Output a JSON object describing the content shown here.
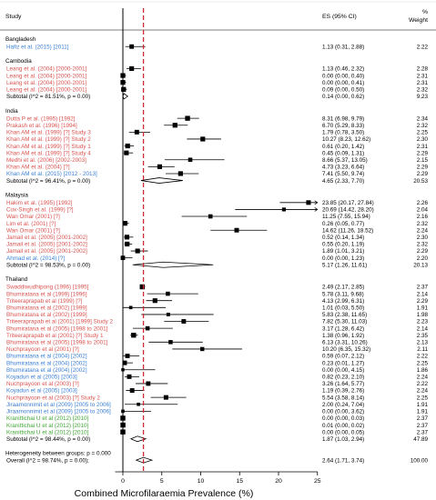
{
  "chart_data": {
    "type": "forest",
    "title": "",
    "xlabel": "Combined Microfilaraemia Prevalence (%)",
    "ylabel": "",
    "xlim": [
      -1,
      25
    ],
    "xticks": [
      0,
      5,
      10,
      15,
      20,
      25
    ],
    "reference_line_x": 2.64,
    "headers": {
      "study": "Study",
      "es": "ES (95% CI)",
      "weight": "%\nWeight"
    },
    "author_colors": {
      "red": "#d9534f",
      "blue": "#3a7fd5",
      "green": "#3fa535",
      "black": "#000000"
    },
    "groups": [
      {
        "name": "Bangladesh",
        "studies": [
          {
            "label": "Hafiz et al. (2015) [2011]",
            "color": "blue",
            "es": 1.13,
            "lo": 0.31,
            "hi": 2.88,
            "es_text": "1.13 (0.31, 2.88)",
            "weight": "2.22"
          }
        ],
        "subtotal": null
      },
      {
        "name": "Cambodia",
        "studies": [
          {
            "label": "Leang et al. (2004) [2000-2001]",
            "color": "red",
            "es": 1.13,
            "lo": 0.46,
            "hi": 2.32,
            "es_text": "1.13 (0.46, 2.32)",
            "weight": "2.28"
          },
          {
            "label": "Leang et al. (2004) [2000-2001]",
            "color": "red",
            "es": 0.0,
            "lo": 0.0,
            "hi": 0.4,
            "es_text": "0.00 (0.00, 0.40)",
            "weight": "2.31"
          },
          {
            "label": "Leang et al. (2004) [2000-2001]",
            "color": "red",
            "es": 0.0,
            "lo": 0.0,
            "hi": 0.41,
            "es_text": "0.00 (0.00, 0.41)",
            "weight": "2.31"
          },
          {
            "label": "Leang et al. (2004) [2000-2001]",
            "color": "red",
            "es": 0.09,
            "lo": 0.0,
            "hi": 0.5,
            "es_text": "0.09 (0.00, 0.50)",
            "weight": "2.32"
          }
        ],
        "subtotal": {
          "label": "Subtotal  (I^2 = 81.51%, p = 0.00)",
          "es": 0.14,
          "lo": 0.0,
          "hi": 0.62,
          "es_text": "0.14 (0.00, 0.62)",
          "weight": "9.23"
        }
      },
      {
        "name": "India",
        "studies": [
          {
            "label": "Dutta P et al. (1995) [1992]",
            "color": "red",
            "es": 8.31,
            "lo": 6.98,
            "hi": 9.79,
            "es_text": "8.31 (6.98, 9.79)",
            "weight": "2.34"
          },
          {
            "label": "Prakash et al. (1996) [1994]",
            "color": "red",
            "es": 6.7,
            "lo": 5.29,
            "hi": 8.33,
            "es_text": "6.70 (5.29, 8.33)",
            "weight": "2.32"
          },
          {
            "label": "Khan AM et al. (1999) [?] Study 3",
            "color": "red",
            "es": 1.79,
            "lo": 0.78,
            "hi": 3.5,
            "es_text": "1.79 (0.78, 3.50)",
            "weight": "2.25"
          },
          {
            "label": "Khan AM et al. (1999) [?] Study 2",
            "color": "red",
            "es": 10.27,
            "lo": 8.23,
            "hi": 12.62,
            "es_text": "10.27 (8.23, 12.62)",
            "weight": "2.30"
          },
          {
            "label": "Khan AM et al. (1999) [?] Study 1",
            "color": "red",
            "es": 0.61,
            "lo": 0.2,
            "hi": 1.42,
            "es_text": "0.61 (0.20, 1.42)",
            "weight": "2.31"
          },
          {
            "label": "Khan AM et al. (1999) [?] Study 4",
            "color": "red",
            "es": 0.45,
            "lo": 0.09,
            "hi": 1.31,
            "es_text": "0.45 (0.09, 1.31)",
            "weight": "2.29"
          },
          {
            "label": "Medhi et al. (2006) [2002-2003]",
            "color": "red",
            "es": 8.66,
            "lo": 5.37,
            "hi": 13.05,
            "es_text": "8.66 (5.37, 13.05)",
            "weight": "2.15"
          },
          {
            "label": "Khan AM et al. (2004) [?]",
            "color": "red",
            "es": 4.73,
            "lo": 3.23,
            "hi": 6.64,
            "es_text": "4.73 (3.23, 6.64)",
            "weight": "2.29"
          },
          {
            "label": "Khan AM et al. (2015) [2012 - 2013]",
            "color": "blue",
            "es": 7.41,
            "lo": 5.5,
            "hi": 9.74,
            "es_text": "7.41 (5.50, 9.74)",
            "weight": "2.29"
          }
        ],
        "subtotal": {
          "label": "Subtotal  (I^2 = 96.41%, p = 0.00)",
          "es": 4.65,
          "lo": 2.33,
          "hi": 7.7,
          "es_text": "4.65 (2.33, 7.70)",
          "weight": "20.53"
        }
      },
      {
        "name": "Malaysia",
        "studies": [
          {
            "label": "Hakim et al. (1995) [1992]",
            "color": "red",
            "es": 23.85,
            "lo": 20.17,
            "hi": 27.84,
            "es_text": "23.85 (20.17, 27.84)",
            "weight": "2.26"
          },
          {
            "label": "Cox-Singh et al. (1999) [?]",
            "color": "red",
            "es": 20.69,
            "lo": 14.42,
            "hi": 28.2,
            "es_text": "20.69 (14.42, 28.20)",
            "weight": "2.04"
          },
          {
            "label": "Wan Omar (2001) [?]",
            "color": "red",
            "es": 11.25,
            "lo": 7.55,
            "hi": 15.94,
            "es_text": "11.25 (7.55, 15.94)",
            "weight": "2.16"
          },
          {
            "label": "Lim et al. (2001) [?]",
            "color": "red",
            "es": 0.26,
            "lo": 0.05,
            "hi": 0.77,
            "es_text": "0.26 (0.05, 0.77)",
            "weight": "2.32"
          },
          {
            "label": "Wan Omar (2001) [?]",
            "color": "red",
            "es": 14.62,
            "lo": 11.26,
            "hi": 18.52,
            "es_text": "14.62 (11.26, 18.52)",
            "weight": "2.24"
          },
          {
            "label": "Jamail et al. (2005) [2001-2002]",
            "color": "red",
            "es": 0.52,
            "lo": 0.14,
            "hi": 1.34,
            "es_text": "0.52 (0.14, 1.34)",
            "weight": "2.30"
          },
          {
            "label": "Jamail et al. (2005) [2001-2002]",
            "color": "red",
            "es": 0.55,
            "lo": 0.2,
            "hi": 1.19,
            "es_text": "0.55 (0.20, 1.19)",
            "weight": "2.32"
          },
          {
            "label": "Jamail et al. (2005) [2001-2002]",
            "color": "red",
            "es": 1.89,
            "lo": 1.01,
            "hi": 3.21,
            "es_text": "1.89 (1.01, 3.21)",
            "weight": "2.29"
          },
          {
            "label": "Ahmad et al. (2014) [?]",
            "color": "blue",
            "es": 0.0,
            "lo": 0.0,
            "hi": 1.23,
            "es_text": "0.00 (0.00, 1.23)",
            "weight": "2.20"
          }
        ],
        "subtotal": {
          "label": "Subtotal  (I^2 = 98.53%, p = 0.00)",
          "es": 5.17,
          "lo": 1.26,
          "hi": 11.61,
          "es_text": "5.17 (1.26, 11.61)",
          "weight": "20.13"
        }
      },
      {
        "name": "Thailand",
        "studies": [
          {
            "label": "Swaddiwudhipong (1996) [1995]",
            "color": "red",
            "es": 2.49,
            "lo": 2.17,
            "hi": 2.85,
            "es_text": "2.49 (2.17, 2.85)",
            "weight": "2.37"
          },
          {
            "label": "Bhumiratana et al (1999) [1996]",
            "color": "red",
            "es": 5.78,
            "lo": 3.11,
            "hi": 9.68,
            "es_text": "5.78 (3.11, 9.68)",
            "weight": "2.14"
          },
          {
            "label": "Triteeraprapab et al (1999) [?]",
            "color": "red",
            "es": 4.13,
            "lo": 2.99,
            "hi": 6.31,
            "es_text": "4.13 (2.99, 6.31)",
            "weight": "2.29"
          },
          {
            "label": "Bhumiratana et al (2002) [1999]",
            "color": "red",
            "es": 1.01,
            "lo": 0.03,
            "hi": 5.5,
            "es_text": "1.01 (0.03, 5.50)",
            "weight": "1.91"
          },
          {
            "label": "Bhumiratana et al (2002) [1999]",
            "color": "red",
            "es": 5.83,
            "lo": 2.38,
            "hi": 11.65,
            "es_text": "5.83 (2.38, 11.65)",
            "weight": "1.98"
          },
          {
            "label": "Triteeraprapab et al (2001) [1999] Study 2",
            "color": "red",
            "es": 7.82,
            "lo": 5.3,
            "hi": 11.03,
            "es_text": "7.82 (5.30, 11.03)",
            "weight": "2.23"
          },
          {
            "label": "Bhumiratana et al (2005) [1998 to 2001]",
            "color": "red",
            "es": 3.17,
            "lo": 1.28,
            "hi": 6.42,
            "es_text": "3.17 (1.28, 6.42)",
            "weight": "2.14"
          },
          {
            "label": "Triteeraprapab et al (2001) [?] Study 1",
            "color": "red",
            "es": 1.38,
            "lo": 0.96,
            "hi": 1.92,
            "es_text": "1.38 (0.96, 1.92)",
            "weight": "2.35"
          },
          {
            "label": "Bhumiratana et al (2005) [1998 to 2001]",
            "color": "red",
            "es": 6.13,
            "lo": 3.31,
            "hi": 10.26,
            "es_text": "6.13 (3.31, 10.26)",
            "weight": "2.13"
          },
          {
            "label": "Nuchprayoon et al (2001) [?]",
            "color": "red",
            "es": 10.2,
            "lo": 6.35,
            "hi": 15.32,
            "es_text": "10.20 (6.35, 15.32)",
            "weight": "2.11"
          },
          {
            "label": "Bhumiratana et al (2004) [2002]",
            "color": "blue",
            "es": 0.59,
            "lo": 0.07,
            "hi": 2.12,
            "es_text": "0.59 (0.07, 2.12)",
            "weight": "2.22"
          },
          {
            "label": "Bhumiratana et al (2004) [2002]",
            "color": "blue",
            "es": 0.23,
            "lo": 0.01,
            "hi": 1.27,
            "es_text": "0.23 (0.01, 1.27)",
            "weight": "2.25"
          },
          {
            "label": "Bhumiratana et al (2004) [2002]",
            "color": "blue",
            "es": 0.0,
            "lo": 0.0,
            "hi": 4.15,
            "es_text": "0.00 (0.00, 4.15)",
            "weight": "1.86"
          },
          {
            "label": "Koyadun et al (2005) [2003]",
            "color": "blue",
            "es": 0.82,
            "lo": 0.23,
            "hi": 2.1,
            "es_text": "0.82 (0.23, 2.10)",
            "weight": "2.24"
          },
          {
            "label": "Nuchprayoon et al (2003) [?]",
            "color": "red",
            "es": 3.26,
            "lo": 1.64,
            "hi": 5.77,
            "es_text": "3.26 (1.64, 5.77)",
            "weight": "2.22"
          },
          {
            "label": "Koyadun et al (2005) [2003]",
            "color": "blue",
            "es": 1.19,
            "lo": 0.39,
            "hi": 2.76,
            "es_text": "1.19 (0.39, 2.76)",
            "weight": "2.24"
          },
          {
            "label": "Nuchprayoon et al (2003) [?] Study 2",
            "color": "red",
            "es": 5.54,
            "lo": 3.58,
            "hi": 8.14,
            "es_text": "5.54 (3.58, 8.14)",
            "weight": "2.25"
          },
          {
            "label": "Jiraamonnimit et al (2009) [2005 to 2006]",
            "color": "blue",
            "es": 2.0,
            "lo": 0.24,
            "hi": 7.04,
            "es_text": "2.00 (0.24, 7.04)",
            "weight": "1.91"
          },
          {
            "label": "Jiraamonnimit et al (2009) [2005 to 2006]",
            "color": "blue",
            "es": 0.0,
            "lo": 0.0,
            "hi": 3.62,
            "es_text": "0.00 (0.00, 3.62)",
            "weight": "1.91"
          },
          {
            "label": "Kranittichai U et al (2012) [2010]",
            "color": "green",
            "es": 0.0,
            "lo": 0.0,
            "hi": 0.03,
            "es_text": "0.00 (0.00, 0.03)",
            "weight": "2.37"
          },
          {
            "label": "Kranittichai U et al (2012) [2010]",
            "color": "green",
            "es": 0.01,
            "lo": 0.0,
            "hi": 0.02,
            "es_text": "0.01 (0.00, 0.02)",
            "weight": "2.37"
          },
          {
            "label": "Kranittichai U et al (2012) [2010]",
            "color": "green",
            "es": 0.0,
            "lo": 0.0,
            "hi": 0.05,
            "es_text": "0.00 (0.00, 0.05)",
            "weight": "2.37"
          }
        ],
        "subtotal": {
          "label": "Subtotal  (I^2 = 98.44%, p = 0.00)",
          "es": 1.87,
          "lo": 1.03,
          "hi": 2.94,
          "es_text": "1.87 (1.03, 2.94)",
          "weight": "47.89"
        }
      }
    ],
    "heterogeneity": "Heterogeneity between groups: p = 0.000",
    "overall": {
      "label": "Overall  (I^2 = 98.74%, p = 0.00);",
      "es": 2.64,
      "lo": 1.71,
      "hi": 3.74,
      "es_text": "2.64 (1.71, 3.74)",
      "weight": "100.00"
    }
  }
}
